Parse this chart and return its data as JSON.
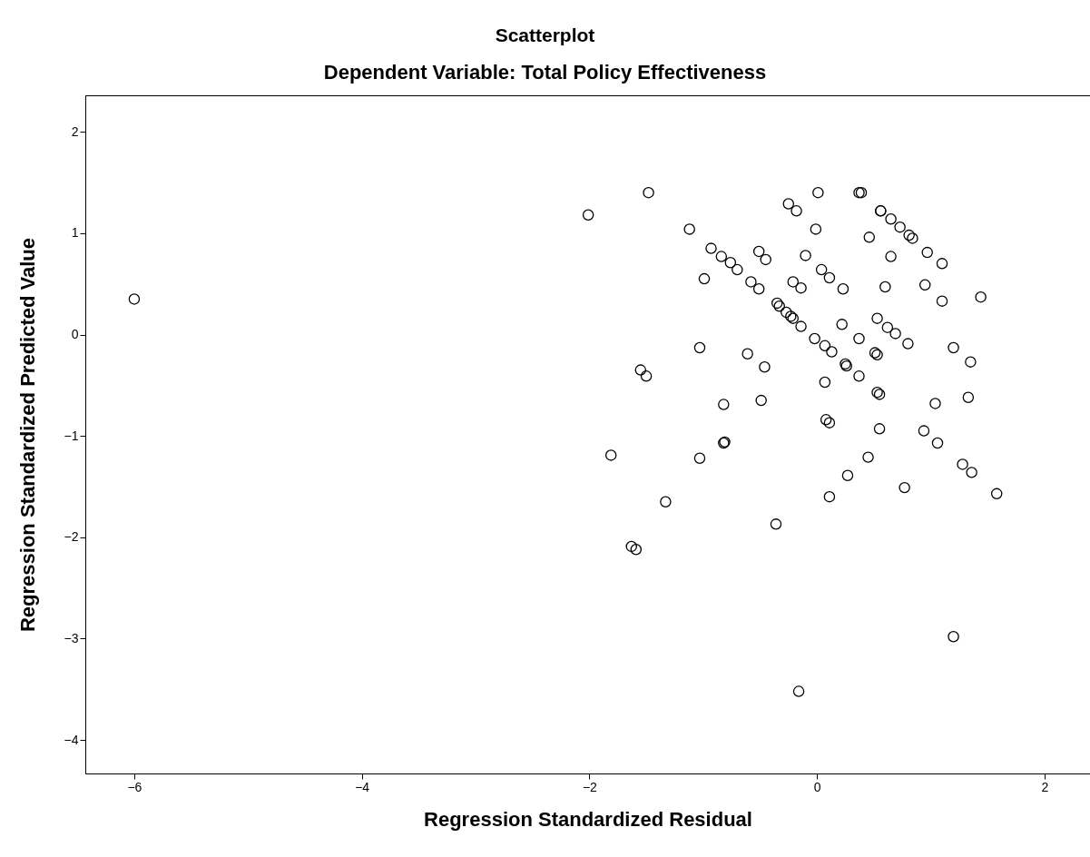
{
  "chart_data": {
    "type": "scatter",
    "title": "Scatterplot",
    "subtitle": "Dependent Variable: Total Policy Effectiveness",
    "xlabel": "Regression Standardized Residual",
    "ylabel": "Regression Standardized Predicted Value",
    "xlim": [
      -6.43,
      2.4
    ],
    "ylim": [
      -4.33,
      2.36
    ],
    "xticks": [
      -6,
      -4,
      -2,
      0,
      2
    ],
    "yticks": [
      -4,
      -3,
      -2,
      -1,
      0,
      1,
      2
    ],
    "grid": false,
    "marker": "circle",
    "series": [
      {
        "color": "#000000",
        "x": [
          -6.0,
          -2.01,
          -1.48,
          -1.12,
          -0.93,
          -0.84,
          -0.76,
          -0.7,
          -0.99,
          -0.51,
          -0.45,
          -0.58,
          -0.51,
          -0.35,
          -0.33,
          -0.27,
          -0.23,
          -0.21,
          -0.14,
          -0.25,
          -0.18,
          0.01,
          -0.01,
          -0.1,
          -0.21,
          -0.14,
          0.04,
          0.11,
          0.23,
          0.37,
          0.39,
          0.56,
          0.56,
          0.65,
          0.73,
          0.81,
          0.84,
          0.46,
          0.65,
          0.97,
          1.1,
          0.6,
          0.95,
          1.1,
          1.44,
          -0.02,
          0.07,
          0.13,
          0.22,
          0.37,
          0.25,
          0.26,
          0.37,
          0.07,
          0.53,
          0.62,
          0.69,
          0.8,
          0.51,
          0.53,
          0.53,
          0.55,
          1.2,
          1.35,
          1.33,
          1.04,
          -1.03,
          -1.55,
          -1.5,
          -0.61,
          -0.46,
          -0.82,
          -0.49,
          0.08,
          0.11,
          -0.81,
          -0.82,
          0.55,
          0.94,
          1.06,
          -1.81,
          -1.03,
          0.45,
          0.27,
          1.28,
          1.36,
          0.77,
          1.58,
          0.11,
          -1.33,
          -0.36,
          -1.63,
          -1.59,
          1.2,
          -0.16
        ],
        "values": [
          0.35,
          1.18,
          1.4,
          1.04,
          0.85,
          0.77,
          0.71,
          0.64,
          0.55,
          0.82,
          0.74,
          0.52,
          0.45,
          0.31,
          0.28,
          0.22,
          0.18,
          0.16,
          0.08,
          1.29,
          1.22,
          1.4,
          1.04,
          0.78,
          0.52,
          0.46,
          0.64,
          0.56,
          0.45,
          1.4,
          1.4,
          1.22,
          1.22,
          1.14,
          1.06,
          0.98,
          0.95,
          0.96,
          0.77,
          0.81,
          0.7,
          0.47,
          0.49,
          0.33,
          0.37,
          -0.04,
          -0.11,
          -0.17,
          0.1,
          -0.04,
          -0.29,
          -0.31,
          -0.41,
          -0.47,
          0.16,
          0.07,
          0.01,
          -0.09,
          -0.18,
          -0.2,
          -0.57,
          -0.59,
          -0.13,
          -0.27,
          -0.62,
          -0.68,
          -0.13,
          -0.35,
          -0.41,
          -0.19,
          -0.32,
          -0.69,
          -0.65,
          -0.84,
          -0.87,
          -1.06,
          -1.07,
          -0.93,
          -0.95,
          -1.07,
          -1.19,
          -1.22,
          -1.21,
          -1.39,
          -1.28,
          -1.36,
          -1.51,
          -1.57,
          -1.6,
          -1.65,
          -1.87,
          -2.09,
          -2.12,
          -2.98,
          -3.52
        ]
      }
    ]
  }
}
